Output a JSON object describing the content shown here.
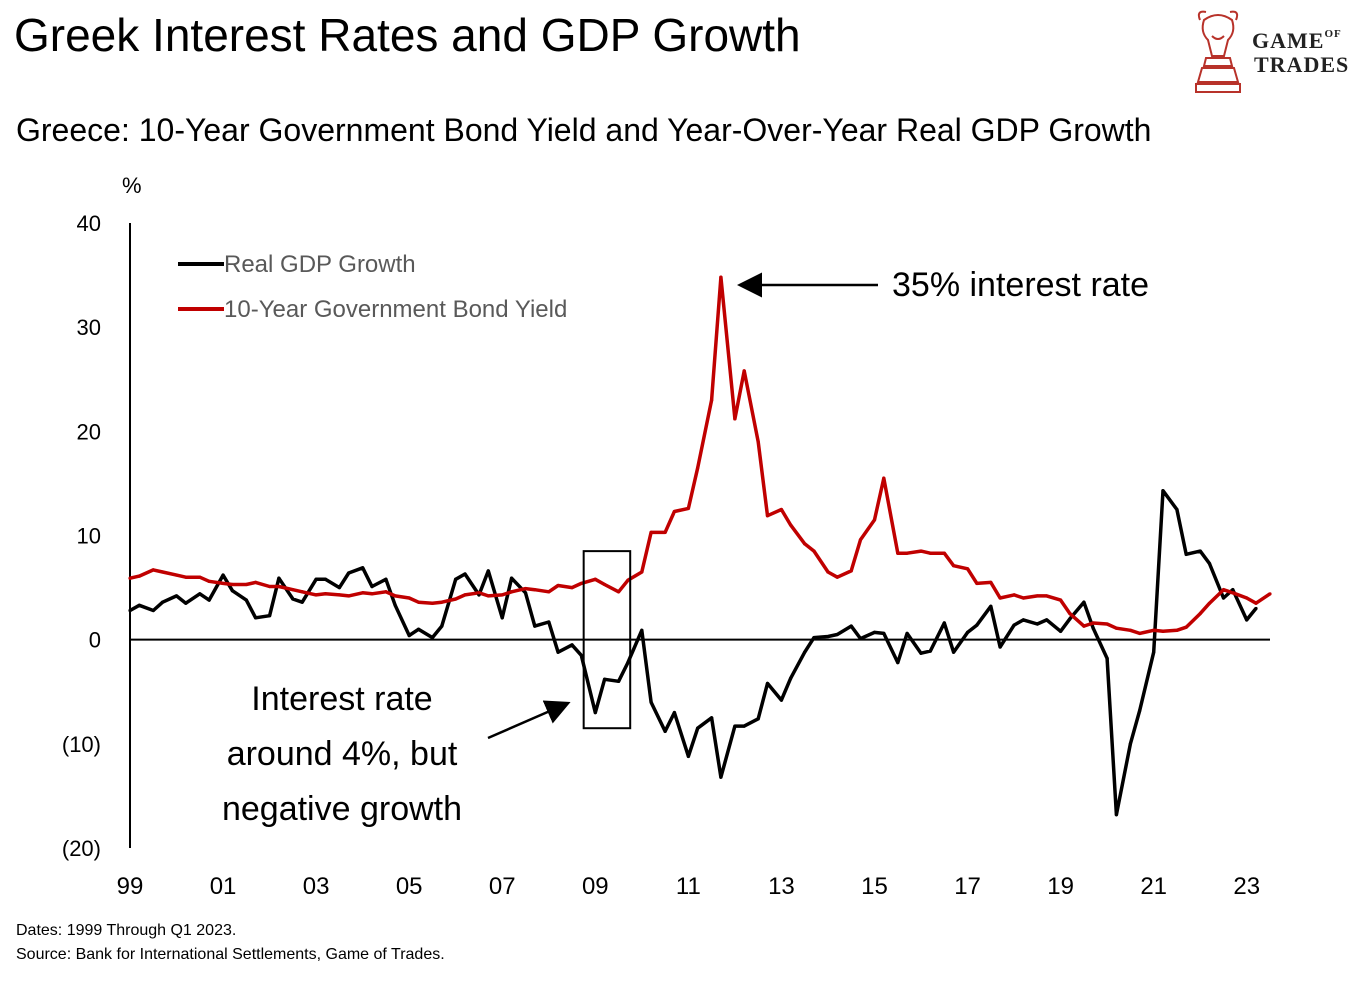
{
  "header": {
    "title": "Greek Interest Rates and GDP Growth",
    "subtitle": "Greece: 10-Year Government Bond Yield and Year-Over-Year Real GDP Growth"
  },
  "logo": {
    "line1": "GAME",
    "of": "OF",
    "line2": "TRADES",
    "icon": "bull-chess-knight-icon"
  },
  "footer": {
    "dates": "Dates: 1999 Through Q1 2023.",
    "source": "Source: Bank for International Settlements, Game of Trades."
  },
  "chart_data": {
    "type": "line",
    "title": "Greece: 10-Year Government Bond Yield and Year-Over-Year Real GDP Growth",
    "ylabel": "%",
    "ylim": [
      -20,
      40
    ],
    "xlim": [
      1999.0,
      2023.5
    ],
    "y_ticks": [
      40,
      30,
      20,
      10,
      0,
      -10,
      -20
    ],
    "y_tick_labels": [
      "40",
      "30",
      "20",
      "10",
      "0",
      "(10)",
      "(20)"
    ],
    "x_ticks": [
      1999,
      2001,
      2003,
      2005,
      2007,
      2009,
      2011,
      2013,
      2015,
      2017,
      2019,
      2021,
      2023
    ],
    "x_tick_labels": [
      "99",
      "01",
      "03",
      "05",
      "07",
      "09",
      "11",
      "13",
      "15",
      "17",
      "19",
      "21",
      "23"
    ],
    "legend": {
      "position": "top-left",
      "entries": [
        "Real GDP Growth",
        "10-Year Government Bond Yield"
      ]
    },
    "colors": {
      "gdp": "#000000",
      "yield": "#c00000"
    },
    "series": [
      {
        "name": "Real GDP Growth",
        "color": "#000000",
        "x": [
          1999.0,
          1999.2,
          1999.5,
          1999.7,
          2000.0,
          2000.2,
          2000.5,
          2000.7,
          2001.0,
          2001.2,
          2001.5,
          2001.7,
          2002.0,
          2002.2,
          2002.5,
          2002.7,
          2003.0,
          2003.2,
          2003.5,
          2003.7,
          2004.0,
          2004.2,
          2004.5,
          2004.7,
          2005.0,
          2005.2,
          2005.5,
          2005.7,
          2006.0,
          2006.2,
          2006.5,
          2006.7,
          2007.0,
          2007.2,
          2007.5,
          2007.7,
          2008.0,
          2008.2,
          2008.5,
          2008.7,
          2009.0,
          2009.2,
          2009.5,
          2009.7,
          2010.0,
          2010.2,
          2010.5,
          2010.7,
          2011.0,
          2011.2,
          2011.5,
          2011.7,
          2012.0,
          2012.2,
          2012.5,
          2012.7,
          2013.0,
          2013.2,
          2013.5,
          2013.7,
          2014.0,
          2014.2,
          2014.5,
          2014.7,
          2015.0,
          2015.2,
          2015.5,
          2015.7,
          2016.0,
          2016.2,
          2016.5,
          2016.7,
          2017.0,
          2017.2,
          2017.5,
          2017.7,
          2018.0,
          2018.2,
          2018.5,
          2018.7,
          2019.0,
          2019.2,
          2019.5,
          2019.7,
          2020.0,
          2020.2,
          2020.5,
          2020.7,
          2021.0,
          2021.2,
          2021.5,
          2021.7,
          2022.0,
          2022.2,
          2022.5,
          2022.7,
          2023.0,
          2023.2
        ],
        "values": [
          2.8,
          3.3,
          2.8,
          3.6,
          4.2,
          3.5,
          4.4,
          3.8,
          6.2,
          4.7,
          3.8,
          2.1,
          2.3,
          5.9,
          3.9,
          3.6,
          5.8,
          5.8,
          5.0,
          6.4,
          6.9,
          5.1,
          5.8,
          3.3,
          0.4,
          1.0,
          0.2,
          1.3,
          5.8,
          6.3,
          4.3,
          6.6,
          2.1,
          5.9,
          4.5,
          1.3,
          1.7,
          -1.2,
          -0.5,
          -1.5,
          -7.0,
          -3.8,
          -4.0,
          -2.2,
          0.9,
          -6.0,
          -8.8,
          -7.0,
          -11.2,
          -8.5,
          -7.5,
          -13.2,
          -8.3,
          -8.3,
          -7.6,
          -4.2,
          -5.8,
          -3.7,
          -1.2,
          0.2,
          0.3,
          0.5,
          1.3,
          0.1,
          0.7,
          0.6,
          -2.2,
          0.6,
          -1.3,
          -1.1,
          1.6,
          -1.2,
          0.7,
          1.4,
          3.2,
          -0.7,
          1.4,
          1.9,
          1.5,
          1.9,
          0.8,
          2.0,
          3.6,
          1.1,
          -1.8,
          -16.8,
          -10.0,
          -6.8,
          -1.2,
          14.3,
          12.5,
          8.2,
          8.5,
          7.3,
          4.0,
          4.8,
          1.9,
          3.0
        ]
      },
      {
        "name": "10-Year Government Bond Yield",
        "color": "#c00000",
        "x": [
          1999.0,
          1999.2,
          1999.5,
          1999.7,
          2000.0,
          2000.2,
          2000.5,
          2000.7,
          2001.0,
          2001.2,
          2001.5,
          2001.7,
          2002.0,
          2002.2,
          2002.5,
          2002.7,
          2003.0,
          2003.2,
          2003.5,
          2003.7,
          2004.0,
          2004.2,
          2004.5,
          2004.7,
          2005.0,
          2005.2,
          2005.5,
          2005.7,
          2006.0,
          2006.2,
          2006.5,
          2006.7,
          2007.0,
          2007.2,
          2007.5,
          2007.7,
          2008.0,
          2008.2,
          2008.5,
          2008.7,
          2009.0,
          2009.2,
          2009.5,
          2009.7,
          2010.0,
          2010.2,
          2010.5,
          2010.7,
          2011.0,
          2011.2,
          2011.5,
          2011.7,
          2012.0,
          2012.2,
          2012.5,
          2012.7,
          2013.0,
          2013.2,
          2013.5,
          2013.7,
          2014.0,
          2014.2,
          2014.5,
          2014.7,
          2015.0,
          2015.2,
          2015.5,
          2015.7,
          2016.0,
          2016.2,
          2016.5,
          2016.7,
          2017.0,
          2017.2,
          2017.5,
          2017.7,
          2018.0,
          2018.2,
          2018.5,
          2018.7,
          2019.0,
          2019.2,
          2019.5,
          2019.7,
          2020.0,
          2020.2,
          2020.5,
          2020.7,
          2021.0,
          2021.2,
          2021.5,
          2021.7,
          2022.0,
          2022.2,
          2022.5,
          2022.7,
          2023.0,
          2023.2,
          2023.5
        ],
        "values": [
          5.9,
          6.1,
          6.7,
          6.5,
          6.2,
          6.0,
          6.0,
          5.6,
          5.4,
          5.3,
          5.3,
          5.5,
          5.1,
          5.1,
          4.8,
          4.6,
          4.3,
          4.4,
          4.3,
          4.2,
          4.5,
          4.4,
          4.6,
          4.2,
          4.0,
          3.6,
          3.5,
          3.6,
          3.9,
          4.3,
          4.5,
          4.2,
          4.3,
          4.6,
          4.9,
          4.8,
          4.6,
          5.2,
          5.0,
          5.4,
          5.8,
          5.3,
          4.6,
          5.7,
          6.5,
          10.3,
          10.3,
          12.3,
          12.6,
          16.5,
          23.0,
          34.8,
          21.2,
          25.8,
          19.0,
          11.9,
          12.5,
          11.0,
          9.2,
          8.5,
          6.5,
          6.0,
          6.6,
          9.6,
          11.5,
          15.5,
          8.3,
          8.3,
          8.5,
          8.3,
          8.3,
          7.1,
          6.8,
          5.4,
          5.5,
          4.0,
          4.3,
          4.0,
          4.2,
          4.2,
          3.8,
          2.5,
          1.3,
          1.6,
          1.5,
          1.1,
          0.9,
          0.6,
          0.9,
          0.8,
          0.9,
          1.2,
          2.5,
          3.5,
          4.8,
          4.5,
          4.0,
          3.5,
          4.4
        ]
      }
    ],
    "annotations": [
      {
        "text": "35% interest rate",
        "x": 2011.75,
        "y": 34.8
      },
      {
        "lines": [
          "Interest rate",
          "around 4%, but",
          "negative growth"
        ],
        "box_x": [
          2008.75,
          2009.75
        ],
        "box_y": [
          -8.5,
          8.5
        ]
      }
    ]
  }
}
